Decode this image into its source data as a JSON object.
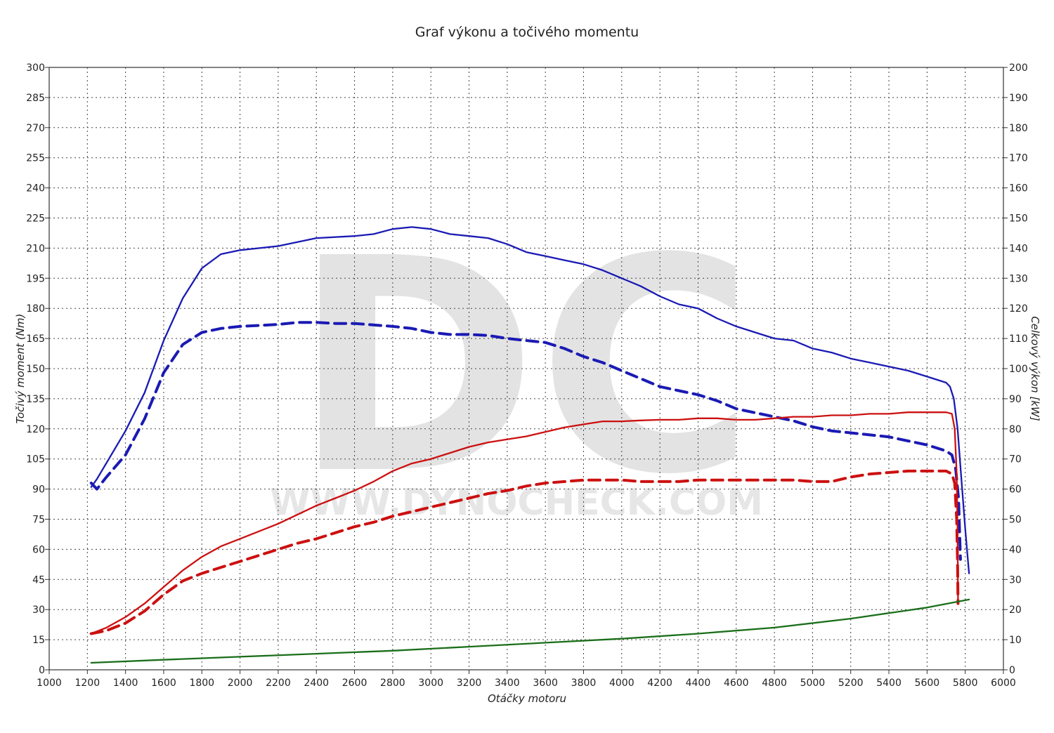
{
  "chart_data": {
    "type": "line",
    "title": "Graf výkonu a točivého momentu",
    "xlabel": "Otáčky motoru",
    "ylabel_left": "Točivý moment (Nm)",
    "ylabel_right": "Celkový výkon [kW]",
    "watermark": {
      "logo": "DC",
      "text": "WWW.DYNOCHECK.COM"
    },
    "xlim": [
      1000,
      6000
    ],
    "ylim_left": [
      0,
      300
    ],
    "ylim_right": [
      0,
      200
    ],
    "x_ticks": [
      1000,
      1200,
      1400,
      1600,
      1800,
      2000,
      2200,
      2400,
      2600,
      2800,
      3000,
      3200,
      3400,
      3600,
      3800,
      4000,
      4200,
      4400,
      4600,
      4800,
      5000,
      5200,
      5400,
      5600,
      5800,
      6000
    ],
    "y_left_ticks": [
      0,
      15,
      30,
      45,
      60,
      75,
      90,
      105,
      120,
      135,
      150,
      165,
      180,
      195,
      210,
      225,
      240,
      255,
      270,
      285,
      300
    ],
    "y_right_ticks": [
      0,
      10,
      20,
      30,
      40,
      50,
      60,
      70,
      80,
      90,
      100,
      110,
      120,
      130,
      140,
      150,
      160,
      170,
      180,
      190,
      200
    ],
    "grid": true,
    "series": [
      {
        "axis": "left",
        "color": "#1a1ab4",
        "style": "solid",
        "points": [
          [
            1220,
            91
          ],
          [
            1250,
            95
          ],
          [
            1300,
            103
          ],
          [
            1400,
            119
          ],
          [
            1500,
            138
          ],
          [
            1600,
            164
          ],
          [
            1700,
            185
          ],
          [
            1800,
            200
          ],
          [
            1900,
            207
          ],
          [
            2000,
            209
          ],
          [
            2200,
            211
          ],
          [
            2400,
            215
          ],
          [
            2600,
            216
          ],
          [
            2700,
            217
          ],
          [
            2800,
            219.5
          ],
          [
            2900,
            220.5
          ],
          [
            3000,
            219.5
          ],
          [
            3100,
            217
          ],
          [
            3200,
            216
          ],
          [
            3300,
            215
          ],
          [
            3400,
            212
          ],
          [
            3500,
            208
          ],
          [
            3600,
            206
          ],
          [
            3700,
            204
          ],
          [
            3800,
            202
          ],
          [
            3900,
            199
          ],
          [
            4000,
            195
          ],
          [
            4100,
            191
          ],
          [
            4200,
            186
          ],
          [
            4300,
            182
          ],
          [
            4400,
            180
          ],
          [
            4500,
            175
          ],
          [
            4600,
            171
          ],
          [
            4700,
            168
          ],
          [
            4800,
            165
          ],
          [
            4900,
            164
          ],
          [
            5000,
            160
          ],
          [
            5100,
            158
          ],
          [
            5200,
            155
          ],
          [
            5300,
            153
          ],
          [
            5400,
            151
          ],
          [
            5500,
            149
          ],
          [
            5600,
            146
          ],
          [
            5700,
            143
          ],
          [
            5720,
            141
          ],
          [
            5740,
            135
          ],
          [
            5760,
            120
          ],
          [
            5780,
            95
          ],
          [
            5800,
            70
          ],
          [
            5820,
            48
          ]
        ]
      },
      {
        "axis": "left",
        "color": "#1a1ab4",
        "style": "dashed",
        "points": [
          [
            1220,
            93
          ],
          [
            1250,
            90
          ],
          [
            1300,
            96
          ],
          [
            1400,
            107
          ],
          [
            1500,
            125
          ],
          [
            1600,
            148
          ],
          [
            1700,
            162
          ],
          [
            1800,
            168
          ],
          [
            1900,
            170
          ],
          [
            2000,
            171
          ],
          [
            2100,
            171.5
          ],
          [
            2200,
            172
          ],
          [
            2300,
            173
          ],
          [
            2400,
            173
          ],
          [
            2500,
            172.5
          ],
          [
            2600,
            172.5
          ],
          [
            2800,
            171
          ],
          [
            2900,
            170
          ],
          [
            3000,
            168
          ],
          [
            3100,
            167
          ],
          [
            3200,
            167
          ],
          [
            3300,
            166.5
          ],
          [
            3400,
            165
          ],
          [
            3500,
            164
          ],
          [
            3600,
            163
          ],
          [
            3700,
            160
          ],
          [
            3800,
            156
          ],
          [
            3900,
            153
          ],
          [
            4000,
            149
          ],
          [
            4100,
            145
          ],
          [
            4200,
            141
          ],
          [
            4300,
            139
          ],
          [
            4400,
            137
          ],
          [
            4500,
            134
          ],
          [
            4600,
            130
          ],
          [
            4700,
            128
          ],
          [
            4800,
            126
          ],
          [
            4900,
            124
          ],
          [
            5000,
            121
          ],
          [
            5100,
            119
          ],
          [
            5200,
            118
          ],
          [
            5300,
            117
          ],
          [
            5400,
            116
          ],
          [
            5500,
            114
          ],
          [
            5600,
            112
          ],
          [
            5700,
            109
          ],
          [
            5730,
            107
          ],
          [
            5750,
            100
          ],
          [
            5765,
            85
          ],
          [
            5770,
            70
          ],
          [
            5775,
            55
          ]
        ]
      },
      {
        "axis": "right",
        "color": "#cc1010",
        "style": "solid",
        "points": [
          [
            1220,
            12
          ],
          [
            1300,
            14
          ],
          [
            1400,
            17.5
          ],
          [
            1500,
            22
          ],
          [
            1600,
            27.5
          ],
          [
            1700,
            33
          ],
          [
            1800,
            37.5
          ],
          [
            1900,
            41
          ],
          [
            2000,
            43.5
          ],
          [
            2100,
            46
          ],
          [
            2200,
            48.5
          ],
          [
            2300,
            51.5
          ],
          [
            2400,
            54.5
          ],
          [
            2500,
            57
          ],
          [
            2600,
            59.5
          ],
          [
            2700,
            62.5
          ],
          [
            2800,
            66
          ],
          [
            2900,
            68.5
          ],
          [
            3000,
            70
          ],
          [
            3100,
            72
          ],
          [
            3200,
            74
          ],
          [
            3300,
            75.5
          ],
          [
            3400,
            76.5
          ],
          [
            3500,
            77.5
          ],
          [
            3600,
            79
          ],
          [
            3700,
            80.5
          ],
          [
            3800,
            81.5
          ],
          [
            3900,
            82.5
          ],
          [
            4000,
            82.5
          ],
          [
            4100,
            82.8
          ],
          [
            4200,
            83
          ],
          [
            4300,
            83
          ],
          [
            4400,
            83.5
          ],
          [
            4500,
            83.5
          ],
          [
            4600,
            83
          ],
          [
            4700,
            83
          ],
          [
            4800,
            83.5
          ],
          [
            4900,
            84
          ],
          [
            5000,
            84
          ],
          [
            5100,
            84.5
          ],
          [
            5200,
            84.5
          ],
          [
            5300,
            85
          ],
          [
            5400,
            85
          ],
          [
            5500,
            85.5
          ],
          [
            5600,
            85.5
          ],
          [
            5700,
            85.5
          ],
          [
            5730,
            85
          ],
          [
            5745,
            80
          ],
          [
            5755,
            65
          ],
          [
            5760,
            45
          ],
          [
            5762,
            23
          ]
        ]
      },
      {
        "axis": "right",
        "color": "#cc1010",
        "style": "dashed",
        "points": [
          [
            1220,
            12
          ],
          [
            1300,
            13
          ],
          [
            1400,
            15.5
          ],
          [
            1500,
            19.5
          ],
          [
            1600,
            25
          ],
          [
            1700,
            29.5
          ],
          [
            1800,
            32
          ],
          [
            1900,
            34
          ],
          [
            2000,
            36
          ],
          [
            2100,
            38
          ],
          [
            2200,
            40
          ],
          [
            2300,
            42
          ],
          [
            2400,
            43.5
          ],
          [
            2500,
            45.5
          ],
          [
            2600,
            47.5
          ],
          [
            2700,
            49
          ],
          [
            2800,
            51
          ],
          [
            2900,
            52.5
          ],
          [
            3000,
            54
          ],
          [
            3100,
            55.5
          ],
          [
            3200,
            57
          ],
          [
            3300,
            58.5
          ],
          [
            3400,
            59.5
          ],
          [
            3500,
            61
          ],
          [
            3600,
            62
          ],
          [
            3700,
            62.5
          ],
          [
            3800,
            63
          ],
          [
            3900,
            63
          ],
          [
            4000,
            63
          ],
          [
            4100,
            62.5
          ],
          [
            4200,
            62.5
          ],
          [
            4300,
            62.5
          ],
          [
            4400,
            63
          ],
          [
            4500,
            63
          ],
          [
            4600,
            63
          ],
          [
            4700,
            63
          ],
          [
            4800,
            63
          ],
          [
            4900,
            63
          ],
          [
            5000,
            62.5
          ],
          [
            5100,
            62.5
          ],
          [
            5200,
            64
          ],
          [
            5300,
            65
          ],
          [
            5400,
            65.5
          ],
          [
            5500,
            66
          ],
          [
            5600,
            66
          ],
          [
            5700,
            66
          ],
          [
            5730,
            65
          ],
          [
            5745,
            62
          ],
          [
            5755,
            50
          ],
          [
            5760,
            35
          ],
          [
            5762,
            22
          ]
        ]
      },
      {
        "axis": "left",
        "color": "#1a6e1a",
        "style": "solid",
        "points": [
          [
            1220,
            3.5
          ],
          [
            1600,
            5
          ],
          [
            2000,
            6.5
          ],
          [
            2400,
            8
          ],
          [
            2800,
            9.5
          ],
          [
            3200,
            11.5
          ],
          [
            3600,
            13.5
          ],
          [
            4000,
            15.5
          ],
          [
            4400,
            18
          ],
          [
            4800,
            21
          ],
          [
            5200,
            25.5
          ],
          [
            5600,
            31
          ],
          [
            5820,
            35
          ]
        ]
      }
    ]
  }
}
